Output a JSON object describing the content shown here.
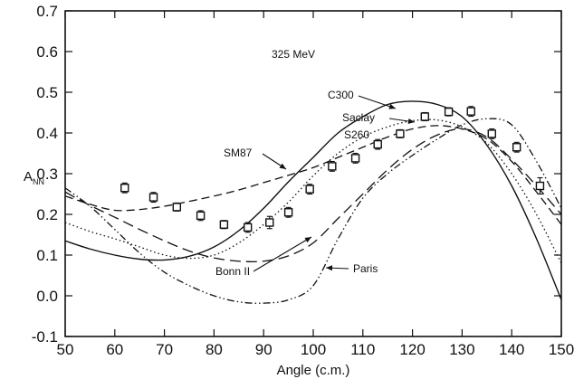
{
  "chart_data": {
    "type": "scatter",
    "annotation_energy": "325 MeV",
    "xlabel": "Angle (c.m.)",
    "ylabel_main": "A",
    "ylabel_sub": "NN",
    "xlim": [
      50,
      150
    ],
    "ylim": [
      -0.1,
      0.7
    ],
    "x_ticks": [
      "50",
      "60",
      "70",
      "80",
      "90",
      "100",
      "110",
      "120",
      "130",
      "140",
      "150"
    ],
    "y_ticks": [
      "-0.1",
      "0.0",
      "0.1",
      "0.2",
      "0.3",
      "0.4",
      "0.5",
      "0.6",
      "0.7"
    ],
    "grid": false,
    "legend": "none",
    "data_points": {
      "x": [
        62,
        67.8,
        72.5,
        77.3,
        82,
        86.8,
        91.2,
        95,
        99.3,
        103.8,
        108.5,
        113,
        117.5,
        122.5,
        127.3,
        131.8,
        136,
        141,
        145.7
      ],
      "y": [
        0.265,
        0.242,
        0.218,
        0.197,
        0.175,
        0.168,
        0.18,
        0.205,
        0.262,
        0.318,
        0.338,
        0.372,
        0.398,
        0.44,
        0.452,
        0.453,
        0.398,
        0.365,
        0.27
      ],
      "err": [
        0.012,
        0.012,
        0.01,
        0.012,
        0.01,
        0.012,
        0.015,
        0.012,
        0.012,
        0.012,
        0.012,
        0.012,
        0.01,
        0.01,
        0.01,
        0.012,
        0.012,
        0.012,
        0.02
      ]
    },
    "series": [
      {
        "name": "C300",
        "style": "solid",
        "x": [
          50,
          55,
          60,
          65,
          70,
          75,
          80,
          85,
          90,
          95,
          100,
          105,
          110,
          115,
          120,
          125,
          130,
          135,
          140,
          145,
          150
        ],
        "y": [
          0.135,
          0.115,
          0.1,
          0.09,
          0.088,
          0.097,
          0.12,
          0.16,
          0.215,
          0.28,
          0.34,
          0.4,
          0.44,
          0.47,
          0.478,
          0.47,
          0.44,
          0.37,
          0.27,
          0.14,
          -0.01
        ]
      },
      {
        "name": "Saclay S260",
        "style": "dotted",
        "x": [
          50,
          55,
          60,
          65,
          70,
          75,
          80,
          85,
          90,
          95,
          100,
          105,
          110,
          115,
          120,
          125,
          130,
          135,
          140,
          145,
          150
        ],
        "y": [
          0.18,
          0.158,
          0.14,
          0.12,
          0.1,
          0.092,
          0.1,
          0.13,
          0.175,
          0.23,
          0.295,
          0.35,
          0.39,
          0.415,
          0.43,
          0.432,
          0.415,
          0.375,
          0.3,
          0.2,
          0.08
        ]
      },
      {
        "name": "SM87",
        "style": "dashed",
        "x": [
          50,
          55,
          60,
          65,
          70,
          75,
          80,
          85,
          90,
          95,
          100,
          105,
          110,
          115,
          120,
          125,
          130,
          135,
          140,
          145,
          150
        ],
        "y": [
          0.245,
          0.225,
          0.21,
          0.212,
          0.22,
          0.232,
          0.245,
          0.26,
          0.278,
          0.296,
          0.315,
          0.34,
          0.365,
          0.39,
          0.41,
          0.418,
          0.41,
          0.385,
          0.33,
          0.255,
          0.175
        ]
      },
      {
        "name": "Bonn II",
        "style": "longdash",
        "x": [
          50,
          55,
          60,
          65,
          70,
          75,
          80,
          85,
          90,
          95,
          100,
          105,
          110,
          115,
          120,
          125,
          130,
          135,
          140,
          145,
          150
        ],
        "y": [
          0.255,
          0.222,
          0.193,
          0.163,
          0.135,
          0.11,
          0.093,
          0.085,
          0.085,
          0.098,
          0.13,
          0.19,
          0.25,
          0.31,
          0.36,
          0.395,
          0.41,
          0.39,
          0.335,
          0.27,
          0.2
        ]
      },
      {
        "name": "Paris",
        "style": "dashdot",
        "x": [
          50,
          55,
          60,
          65,
          70,
          75,
          80,
          85,
          90,
          95,
          100,
          105,
          110,
          115,
          120,
          125,
          130,
          135,
          140,
          145,
          150
        ],
        "y": [
          0.265,
          0.22,
          0.163,
          0.105,
          0.058,
          0.025,
          0.0,
          -0.015,
          -0.018,
          -0.01,
          0.025,
          0.14,
          0.24,
          0.3,
          0.345,
          0.385,
          0.42,
          0.435,
          0.42,
          0.33,
          0.215
        ]
      }
    ],
    "labels": [
      {
        "text": "C300",
        "series": "C300"
      },
      {
        "text": "Saclay",
        "series": "Saclay S260"
      },
      {
        "text": "S260",
        "series": "Saclay S260"
      },
      {
        "text": "SM87",
        "series": "SM87"
      },
      {
        "text": "Bonn II",
        "series": "Bonn II"
      },
      {
        "text": "Paris",
        "series": "Paris"
      }
    ]
  }
}
